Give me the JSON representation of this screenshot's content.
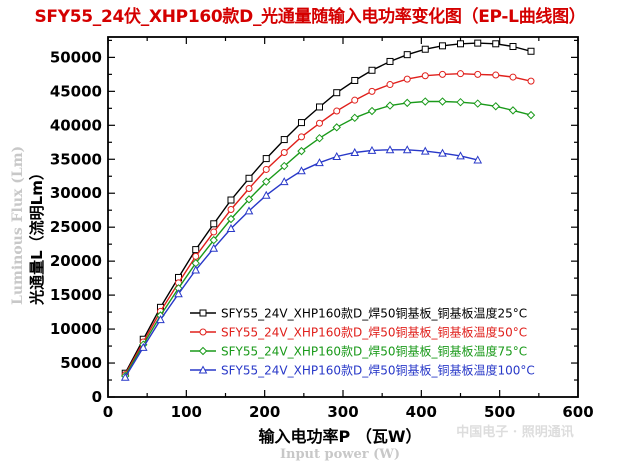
{
  "title": "SFY55_24伏_XHP160款D_光通量随输入电功率变化图（EP-L曲线图）",
  "watermark_ylabel": "Luminous Flux (Lm)",
  "watermark_xlabel": "Input power (W)",
  "watermark_brand": "中国电子 · 照明通讯",
  "chart_data": {
    "type": "line",
    "xlabel": "输入电功率P （瓦W）",
    "ylabel": "光通量L（流明Lm）",
    "xlim": [
      0,
      600
    ],
    "ylim": [
      0,
      53000
    ],
    "xticks": [
      "0",
      "100",
      "200",
      "300",
      "400",
      "500",
      "600"
    ],
    "yticks": [
      "0",
      "5000",
      "10000",
      "15000",
      "20000",
      "25000",
      "30000",
      "35000",
      "40000",
      "45000",
      "50000"
    ],
    "legend_position": "bottom-right",
    "series": [
      {
        "name": "SFY55_24V_XHP160款D_焊50铜基板_铜基板温度25°C",
        "color": "#000000",
        "marker": "square",
        "x": [
          22,
          45,
          67,
          90,
          112,
          135,
          157,
          180,
          202,
          225,
          247,
          270,
          292,
          315,
          337,
          360,
          382,
          405,
          427,
          450,
          472,
          495,
          517,
          540
        ],
        "y": [
          3500,
          8500,
          13200,
          17600,
          21700,
          25500,
          29000,
          32200,
          35100,
          37900,
          40400,
          42700,
          44800,
          46600,
          48100,
          49400,
          50400,
          51200,
          51700,
          52000,
          52100,
          52000,
          51600,
          50900
        ]
      },
      {
        "name": "SFY55_24V_XHP160款D_焊50铜基板_铜基板温度50°C",
        "color": "#e0201c",
        "marker": "circle",
        "x": [
          22,
          45,
          67,
          90,
          112,
          135,
          157,
          180,
          202,
          225,
          247,
          270,
          292,
          315,
          337,
          360,
          382,
          405,
          427,
          450,
          472,
          495,
          517,
          540
        ],
        "y": [
          3300,
          8100,
          12600,
          16800,
          20700,
          24300,
          27600,
          30700,
          33500,
          36000,
          38300,
          40300,
          42100,
          43700,
          45000,
          46000,
          46800,
          47300,
          47500,
          47600,
          47500,
          47400,
          47100,
          46500
        ]
      },
      {
        "name": "SFY55_24V_XHP160款D_焊50铜基板_铜基板温度75°C",
        "color": "#1a9a1a",
        "marker": "diamond",
        "x": [
          22,
          45,
          67,
          90,
          112,
          135,
          157,
          180,
          202,
          225,
          247,
          270,
          292,
          315,
          337,
          360,
          382,
          405,
          427,
          450,
          472,
          495,
          517,
          540
        ],
        "y": [
          3100,
          7700,
          12000,
          16000,
          19700,
          23100,
          26200,
          29100,
          31700,
          34000,
          36200,
          38100,
          39700,
          41100,
          42100,
          42900,
          43300,
          43500,
          43500,
          43400,
          43200,
          42800,
          42200,
          41500
        ]
      },
      {
        "name": "SFY55_24V_XHP160款D_焊50铜基板_铜基板温度100°C",
        "color": "#2838c8",
        "marker": "triangle",
        "x": [
          22,
          45,
          67,
          90,
          112,
          135,
          157,
          180,
          202,
          225,
          247,
          270,
          292,
          315,
          337,
          360,
          382,
          405,
          427,
          450,
          472
        ],
        "y": [
          2900,
          7300,
          11400,
          15200,
          18700,
          21900,
          24800,
          27400,
          29700,
          31700,
          33300,
          34500,
          35400,
          36000,
          36300,
          36400,
          36400,
          36200,
          35900,
          35500,
          34900
        ]
      }
    ]
  }
}
